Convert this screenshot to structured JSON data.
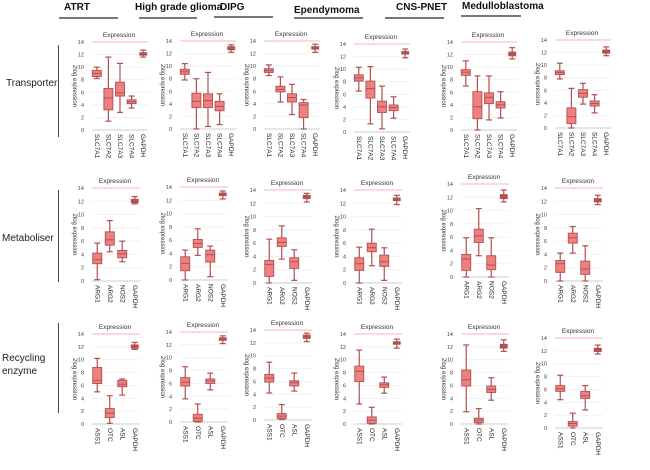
{
  "columns": [
    "ATRT",
    "High grade glioma",
    "DIPG",
    "Ependymoma",
    "CNS-PNET",
    "Medulloblastoma"
  ],
  "rows": [
    "Transporter",
    "Metaboliser",
    "Recycling enzyme"
  ],
  "panel_title": "Expression",
  "ylabel": "2log expression",
  "colors": {
    "box_fill": "#f08080",
    "box_stroke": "#b05050",
    "gapdh_fill": "#c0504d",
    "title_line": "#f4b6b6",
    "grid": "#eeeeee"
  },
  "chart_data": {
    "type": "boxplot",
    "ylim": [
      0,
      14
    ],
    "yticks": [
      0,
      2,
      4,
      6,
      8,
      10,
      12,
      14
    ],
    "panels": [
      {
        "row": "Transporter",
        "column": "ATRT",
        "categories": [
          "SLC7A1",
          "SLC7A2",
          "SLC7A3",
          "SLC7A4",
          "GAPDH"
        ],
        "boxes": [
          [
            8.2,
            8.5,
            9.0,
            9.5,
            10.0
          ],
          [
            1.4,
            3.2,
            5.1,
            6.6,
            11.6
          ],
          [
            2.8,
            5.4,
            5.9,
            7.6,
            10.6
          ],
          [
            3.5,
            4.2,
            4.5,
            4.8,
            5.4
          ],
          [
            11.6,
            11.9,
            12.1,
            12.3,
            12.7
          ]
        ]
      },
      {
        "row": "Transporter",
        "column": "High grade glioma",
        "categories": [
          "SLC7A1",
          "SLC7A2",
          "SLC7A3",
          "SLC7A4",
          "GAPDH"
        ],
        "boxes": [
          [
            7.8,
            8.7,
            9.1,
            9.5,
            10.4
          ],
          [
            0.0,
            3.4,
            4.4,
            5.7,
            8.0
          ],
          [
            0.4,
            3.4,
            4.5,
            5.6,
            9.0
          ],
          [
            0.7,
            2.9,
            3.6,
            4.4,
            5.6
          ],
          [
            12.2,
            12.6,
            12.9,
            13.1,
            13.4
          ]
        ]
      },
      {
        "row": "Transporter",
        "column": "DIPG",
        "categories": [
          "SLC7A1",
          "SLC7A2",
          "SLC7A3",
          "SLC7A4",
          "GAPDH"
        ],
        "boxes": [
          [
            8.5,
            9.0,
            9.3,
            9.6,
            10.2
          ],
          [
            4.3,
            5.9,
            6.3,
            6.8,
            8.3
          ],
          [
            2.3,
            4.3,
            5.0,
            5.6,
            7.1
          ],
          [
            0.0,
            1.8,
            3.8,
            4.2,
            4.7
          ],
          [
            12.2,
            12.7,
            12.9,
            13.1,
            13.5
          ]
        ]
      },
      {
        "row": "Transporter",
        "column": "Ependymoma",
        "categories": [
          "SLC7A1",
          "SLC7A2",
          "SLC7A3",
          "SLC7A4",
          "GAPDH"
        ],
        "boxes": [
          [
            6.5,
            8.1,
            8.6,
            9.1,
            10.3
          ],
          [
            1.3,
            5.4,
            6.9,
            8.1,
            10.4
          ],
          [
            0.5,
            3.1,
            4.0,
            4.9,
            7.3
          ],
          [
            2.2,
            3.4,
            3.9,
            4.3,
            5.6
          ],
          [
            11.8,
            12.4,
            12.6,
            12.8,
            13.2
          ]
        ]
      },
      {
        "row": "Transporter",
        "column": "CNS-PNET",
        "categories": [
          "SLC7A1",
          "SLC7A2",
          "SLC7A3",
          "SLC7A4",
          "GAPDH"
        ],
        "boxes": [
          [
            7.0,
            8.7,
            9.2,
            9.6,
            11.0
          ],
          [
            0.0,
            1.8,
            3.7,
            6.1,
            8.6
          ],
          [
            1.6,
            4.2,
            5.2,
            5.9,
            8.6
          ],
          [
            1.9,
            3.5,
            4.0,
            4.5,
            6.1
          ],
          [
            11.3,
            11.8,
            12.1,
            12.4,
            13.1
          ]
        ]
      },
      {
        "row": "Transporter",
        "column": "Medulloblastoma",
        "categories": [
          "SLC7A1",
          "SLC7A2",
          "SLC7A3",
          "SLC7A4",
          "GAPDH"
        ],
        "boxes": [
          [
            7.8,
            8.5,
            8.8,
            9.1,
            10.3
          ],
          [
            0.0,
            0.7,
            1.8,
            3.2,
            6.3
          ],
          [
            3.8,
            4.9,
            5.5,
            6.1,
            7.1
          ],
          [
            2.4,
            3.5,
            3.9,
            4.3,
            5.3
          ],
          [
            11.5,
            11.9,
            12.2,
            12.4,
            12.9
          ]
        ]
      },
      {
        "row": "Metaboliser",
        "column": "ATRT",
        "categories": [
          "ARG1",
          "ARG2",
          "NOS2",
          "GAPDH"
        ],
        "boxes": [
          [
            0.2,
            2.6,
            3.2,
            4.2,
            5.7
          ],
          [
            4.4,
            5.4,
            6.2,
            7.4,
            9.1
          ],
          [
            2.9,
            3.5,
            4.1,
            4.6,
            6.0
          ],
          [
            11.6,
            11.8,
            12.0,
            12.3,
            12.7
          ]
        ]
      },
      {
        "row": "Metaboliser",
        "column": "High grade glioma",
        "categories": [
          "ARG1",
          "ARG2",
          "NOS2",
          "GAPDH"
        ],
        "boxes": [
          [
            0.0,
            1.4,
            2.5,
            3.5,
            4.5
          ],
          [
            3.7,
            4.9,
            5.5,
            6.1,
            7.7
          ],
          [
            0.5,
            2.7,
            3.8,
            4.5,
            5.1
          ],
          [
            12.2,
            12.7,
            12.9,
            13.1,
            13.4
          ]
        ]
      },
      {
        "row": "Metaboliser",
        "column": "DIPG",
        "categories": [
          "ARG1",
          "ARG2",
          "NOS2",
          "GAPDH"
        ],
        "boxes": [
          [
            0.0,
            1.0,
            2.8,
            3.4,
            6.6
          ],
          [
            3.6,
            5.5,
            6.1,
            6.8,
            8.6
          ],
          [
            0.4,
            2.2,
            3.2,
            3.8,
            5.0
          ],
          [
            12.2,
            12.7,
            12.9,
            13.2,
            13.5
          ]
        ]
      },
      {
        "row": "Metaboliser",
        "column": "Ependymoma",
        "categories": [
          "ARG1",
          "ARG2",
          "NOS2",
          "GAPDH"
        ],
        "boxes": [
          [
            0.0,
            1.9,
            2.9,
            3.8,
            5.4
          ],
          [
            2.6,
            4.7,
            5.3,
            6.0,
            8.1
          ],
          [
            0.4,
            2.5,
            3.2,
            4.2,
            5.3
          ],
          [
            11.8,
            12.4,
            12.6,
            12.8,
            13.2
          ]
        ]
      },
      {
        "row": "Metaboliser",
        "column": "CNS-PNET",
        "categories": [
          "ARG1",
          "ARG2",
          "NOS2",
          "GAPDH"
        ],
        "boxes": [
          [
            0.0,
            1.0,
            2.7,
            3.4,
            5.9
          ],
          [
            3.2,
            5.2,
            6.2,
            7.2,
            10.3
          ],
          [
            0.0,
            1.1,
            1.8,
            3.2,
            5.9
          ],
          [
            11.3,
            11.8,
            12.1,
            12.4,
            13.1
          ]
        ]
      },
      {
        "row": "Metaboliser",
        "column": "Medulloblastoma",
        "categories": [
          "ARG1",
          "ARG2",
          "NOS2",
          "GAPDH"
        ],
        "boxes": [
          [
            0.0,
            1.3,
            2.6,
            3.1,
            4.2
          ],
          [
            4.2,
            5.7,
            6.5,
            7.2,
            8.2
          ],
          [
            0.0,
            1.0,
            1.8,
            3.0,
            5.3
          ],
          [
            11.5,
            11.9,
            12.2,
            12.4,
            12.9
          ]
        ]
      },
      {
        "row": "Recycling enzyme",
        "column": "ATRT",
        "categories": [
          "ASS1",
          "OTC",
          "ASL",
          "GAPDH"
        ],
        "boxes": [
          [
            5.0,
            6.3,
            6.8,
            8.8,
            10.2
          ],
          [
            0.1,
            1.0,
            1.7,
            2.4,
            4.4
          ],
          [
            4.5,
            5.8,
            6.2,
            6.8,
            7.0
          ],
          [
            11.6,
            11.8,
            12.0,
            12.3,
            12.7
          ]
        ]
      },
      {
        "row": "Recycling enzyme",
        "column": "High grade glioma",
        "categories": [
          "ASS1",
          "OTC",
          "ASL",
          "GAPDH"
        ],
        "boxes": [
          [
            3.6,
            5.6,
            6.2,
            6.9,
            8.6
          ],
          [
            0.0,
            0.1,
            0.6,
            1.2,
            2.8
          ],
          [
            5.0,
            6.0,
            6.4,
            6.7,
            7.6
          ],
          [
            12.2,
            12.7,
            12.9,
            13.1,
            13.4
          ]
        ]
      },
      {
        "row": "Recycling enzyme",
        "column": "DIPG",
        "categories": [
          "ASS1",
          "OTC",
          "ASL",
          "GAPDH"
        ],
        "boxes": [
          [
            4.2,
            5.9,
            6.5,
            7.1,
            9.0
          ],
          [
            0.1,
            0.2,
            0.6,
            1.0,
            2.4
          ],
          [
            4.5,
            5.3,
            5.8,
            6.1,
            7.3
          ],
          [
            12.2,
            12.7,
            12.9,
            13.2,
            13.5
          ]
        ]
      },
      {
        "row": "Recycling enzyme",
        "column": "Ependymoma",
        "categories": [
          "ASS1",
          "OTC",
          "ASL",
          "GAPDH"
        ],
        "boxes": [
          [
            3.1,
            6.6,
            8.2,
            9.0,
            11.5
          ],
          [
            0.0,
            0.1,
            0.6,
            1.1,
            2.6
          ],
          [
            4.8,
            5.7,
            6.1,
            6.4,
            7.3
          ],
          [
            11.8,
            12.4,
            12.6,
            12.8,
            13.2
          ]
        ]
      },
      {
        "row": "Recycling enzyme",
        "column": "CNS-PNET",
        "categories": [
          "ASS1",
          "OTC",
          "ASL",
          "GAPDH"
        ],
        "boxes": [
          [
            1.9,
            5.9,
            6.9,
            8.4,
            12.3
          ],
          [
            0.0,
            0.2,
            0.6,
            0.9,
            2.4
          ],
          [
            3.7,
            4.9,
            5.4,
            5.9,
            7.2
          ],
          [
            11.3,
            11.8,
            12.1,
            12.4,
            13.1
          ]
        ]
      },
      {
        "row": "Recycling enzyme",
        "column": "Medulloblastoma",
        "categories": [
          "ASS1",
          "OTC",
          "ASL",
          "GAPDH"
        ],
        "boxes": [
          [
            4.4,
            5.7,
            6.1,
            6.6,
            8.2
          ],
          [
            0.0,
            0.3,
            0.7,
            1.0,
            2.3
          ],
          [
            2.8,
            4.6,
            5.0,
            5.7,
            6.6
          ],
          [
            11.5,
            11.9,
            12.2,
            12.4,
            12.9
          ]
        ]
      }
    ]
  }
}
